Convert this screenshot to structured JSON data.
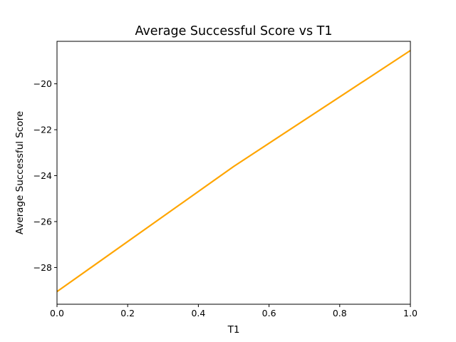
{
  "chart_data": {
    "type": "line",
    "title": "Average Successful Score vs T1",
    "xlabel": "T1",
    "ylabel": "Average Successful Score",
    "xlim": [
      0.0,
      1.0
    ],
    "ylim": [
      -29.6,
      -18.15
    ],
    "x_ticks": [
      0.0,
      0.2,
      0.4,
      0.6,
      0.8,
      1.0
    ],
    "x_tick_labels": [
      "0.0",
      "0.2",
      "0.4",
      "0.6",
      "0.8",
      "1.0"
    ],
    "y_ticks": [
      -28,
      -26,
      -24,
      -22,
      -20
    ],
    "y_tick_labels": [
      "−28",
      "−26",
      "−24",
      "−22",
      "−20"
    ],
    "grid": false,
    "series": [
      {
        "color": "#ffa500",
        "x": [
          0.0,
          0.5,
          1.0
        ],
        "y": [
          -29.05,
          -23.6,
          -18.55
        ]
      }
    ]
  }
}
